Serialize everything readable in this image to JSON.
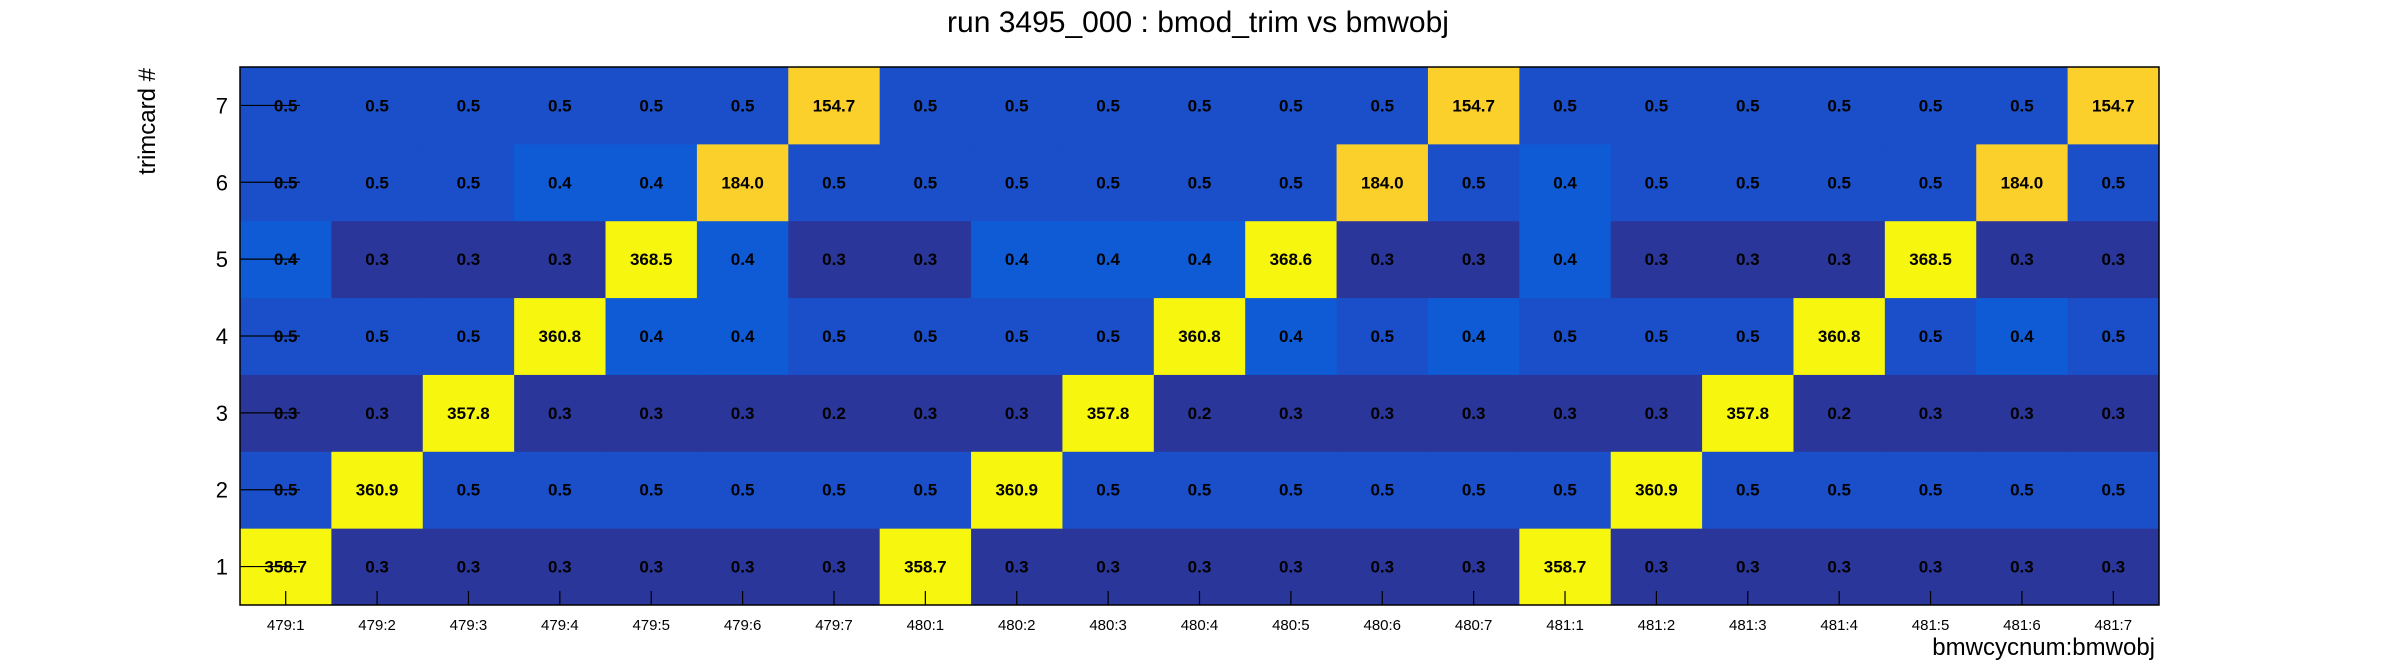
{
  "chart_data": {
    "type": "heatmap",
    "title": "run 3495_000 : bmod_trim vs bmwobj",
    "xlabel": "bmwcycnum:bmwobj",
    "ylabel": "trimcard #",
    "x_categories": [
      "479:1",
      "479:2",
      "479:3",
      "479:4",
      "479:5",
      "479:6",
      "479:7",
      "480:1",
      "480:2",
      "480:3",
      "480:4",
      "480:5",
      "480:6",
      "480:7",
      "481:1",
      "481:2",
      "481:3",
      "481:4",
      "481:5",
      "481:6",
      "481:7"
    ],
    "y_categories": [
      "1",
      "2",
      "3",
      "4",
      "5",
      "6",
      "7"
    ],
    "values": [
      [
        358.7,
        0.3,
        0.3,
        0.3,
        0.3,
        0.3,
        0.3,
        358.7,
        0.3,
        0.3,
        0.3,
        0.3,
        0.3,
        0.3,
        358.7,
        0.3,
        0.3,
        0.3,
        0.3,
        0.3,
        0.3
      ],
      [
        0.5,
        360.9,
        0.5,
        0.5,
        0.5,
        0.5,
        0.5,
        0.5,
        360.9,
        0.5,
        0.5,
        0.5,
        0.5,
        0.5,
        0.5,
        360.9,
        0.5,
        0.5,
        0.5,
        0.5,
        0.5
      ],
      [
        0.3,
        0.3,
        357.8,
        0.3,
        0.3,
        0.3,
        0.2,
        0.3,
        0.3,
        357.8,
        0.2,
        0.3,
        0.3,
        0.3,
        0.3,
        0.3,
        357.8,
        0.2,
        0.3,
        0.3,
        0.3
      ],
      [
        0.5,
        0.5,
        0.5,
        360.8,
        0.4,
        0.4,
        0.5,
        0.5,
        0.5,
        0.5,
        360.8,
        0.4,
        0.5,
        0.4,
        0.5,
        0.5,
        0.5,
        360.8,
        0.5,
        0.4,
        0.5
      ],
      [
        0.4,
        0.3,
        0.3,
        0.3,
        368.5,
        0.4,
        0.3,
        0.3,
        0.4,
        0.4,
        0.4,
        368.6,
        0.3,
        0.3,
        0.4,
        0.3,
        0.3,
        0.3,
        368.5,
        0.3,
        0.3
      ],
      [
        0.5,
        0.5,
        0.5,
        0.4,
        0.4,
        184.0,
        0.5,
        0.5,
        0.5,
        0.5,
        0.5,
        0.5,
        184.0,
        0.5,
        0.4,
        0.5,
        0.5,
        0.5,
        0.5,
        184.0,
        0.5
      ],
      [
        0.5,
        0.5,
        0.5,
        0.5,
        0.5,
        0.5,
        154.7,
        0.5,
        0.5,
        0.5,
        0.5,
        0.5,
        0.5,
        154.7,
        0.5,
        0.5,
        0.5,
        0.5,
        0.5,
        0.5,
        154.7
      ]
    ],
    "value_format": "one decimal",
    "colors": {
      "low": "#2a3699",
      "mid": "#1a4fc9",
      "mid_light": "#0f5bd6",
      "high_mid": "#fcd02a",
      "high": "#f7f60e",
      "axis": "#000000"
    },
    "legend": "none",
    "grid": false
  }
}
